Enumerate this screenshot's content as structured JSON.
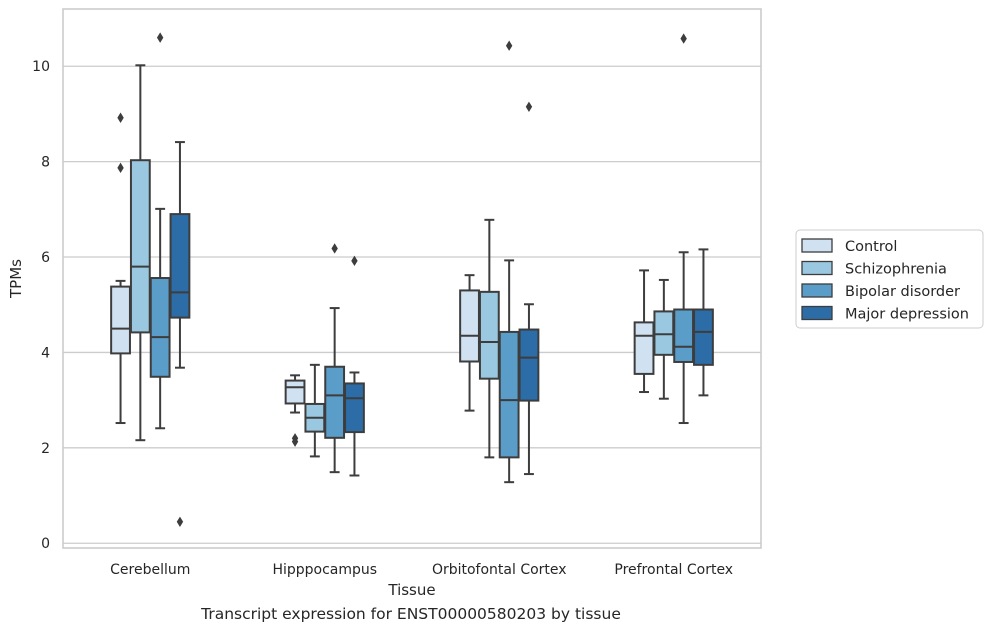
{
  "caption": "Transcript expression for ENST00000580203 by tissue",
  "chart_data": {
    "type": "box",
    "title": "",
    "xlabel": "Tissue",
    "ylabel": "TPMs",
    "ylim": [
      -0.1,
      11.2
    ],
    "yticks": [
      0,
      2,
      4,
      6,
      8,
      10
    ],
    "grid": "horizontal",
    "legend_position": "right",
    "categories": [
      "Cerebellum",
      "Hipppocampus",
      "Orbitofontal Cortex",
      "Prefrontal Cortex"
    ],
    "series": [
      {
        "name": "Control",
        "color": "#d0e1f2",
        "boxes": [
          {
            "q1": 3.98,
            "median": 4.5,
            "q3": 5.38,
            "whisker_low": 2.52,
            "whisker_high": 5.5,
            "outliers": [
              7.87,
              8.92
            ]
          },
          {
            "q1": 2.93,
            "median": 3.27,
            "q3": 3.41,
            "whisker_low": 2.74,
            "whisker_high": 3.52,
            "outliers": [
              2.13,
              2.2
            ]
          },
          {
            "q1": 3.81,
            "median": 4.35,
            "q3": 5.3,
            "whisker_low": 2.78,
            "whisker_high": 5.62,
            "outliers": []
          },
          {
            "q1": 3.55,
            "median": 4.35,
            "q3": 4.63,
            "whisker_low": 3.17,
            "whisker_high": 5.72,
            "outliers": []
          }
        ]
      },
      {
        "name": "Schizophrenia",
        "color": "#9ac8e0",
        "boxes": [
          {
            "q1": 4.42,
            "median": 5.8,
            "q3": 8.03,
            "whisker_low": 2.16,
            "whisker_high": 10.02,
            "outliers": []
          },
          {
            "q1": 2.34,
            "median": 2.63,
            "q3": 2.92,
            "whisker_low": 1.82,
            "whisker_high": 3.74,
            "outliers": []
          },
          {
            "q1": 3.45,
            "median": 4.22,
            "q3": 5.27,
            "whisker_low": 1.8,
            "whisker_high": 6.78,
            "outliers": []
          },
          {
            "q1": 3.95,
            "median": 4.38,
            "q3": 4.86,
            "whisker_low": 3.03,
            "whisker_high": 5.52,
            "outliers": []
          }
        ]
      },
      {
        "name": "Bipolar disorder",
        "color": "#5a9dc9",
        "boxes": [
          {
            "q1": 3.49,
            "median": 4.32,
            "q3": 5.56,
            "whisker_low": 2.41,
            "whisker_high": 7.01,
            "outliers": [
              10.6
            ]
          },
          {
            "q1": 2.21,
            "median": 3.1,
            "q3": 3.7,
            "whisker_low": 1.49,
            "whisker_high": 4.93,
            "outliers": [
              6.18
            ]
          },
          {
            "q1": 1.8,
            "median": 3.0,
            "q3": 4.43,
            "whisker_low": 1.28,
            "whisker_high": 5.93,
            "outliers": [
              10.43
            ]
          },
          {
            "q1": 3.8,
            "median": 4.12,
            "q3": 4.9,
            "whisker_low": 2.52,
            "whisker_high": 6.1,
            "outliers": [
              10.58
            ]
          }
        ]
      },
      {
        "name": "Major depression",
        "color": "#2c6da8",
        "boxes": [
          {
            "q1": 4.73,
            "median": 5.26,
            "q3": 6.9,
            "whisker_low": 3.68,
            "whisker_high": 8.41,
            "outliers": [
              0.45
            ]
          },
          {
            "q1": 2.33,
            "median": 3.04,
            "q3": 3.35,
            "whisker_low": 1.42,
            "whisker_high": 3.58,
            "outliers": [
              5.92
            ]
          },
          {
            "q1": 2.99,
            "median": 3.89,
            "q3": 4.48,
            "whisker_low": 1.45,
            "whisker_high": 5.01,
            "outliers": [
              9.15
            ]
          },
          {
            "q1": 3.74,
            "median": 4.43,
            "q3": 4.9,
            "whisker_low": 3.1,
            "whisker_high": 6.16,
            "outliers": []
          }
        ]
      }
    ]
  }
}
